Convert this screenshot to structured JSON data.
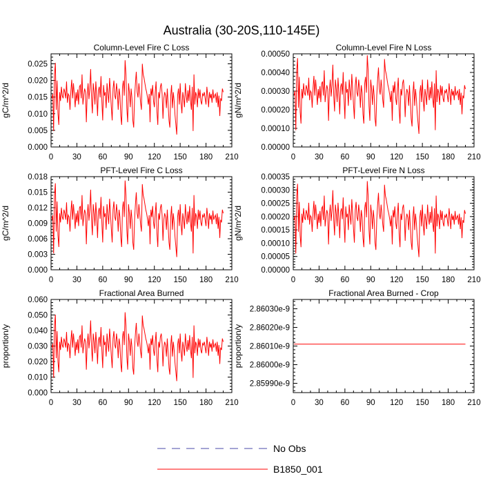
{
  "figure_title": "Australia (30-20S,110-145E)",
  "legend": [
    {
      "label": "No Obs",
      "color": "#4a4aa8",
      "style": "dashed"
    },
    {
      "label": "B1850_001",
      "color": "#ff0000",
      "style": "solid"
    }
  ],
  "chart_data": [
    {
      "id": "col_c",
      "type": "line",
      "title": "Column-Level Fire C Loss",
      "ylabel": "gC/m^2/d",
      "xlim": [
        0,
        210
      ],
      "ylim": [
        0,
        0.028
      ],
      "xticks": [
        0,
        30,
        60,
        90,
        120,
        150,
        180,
        210
      ],
      "yticks": [
        0,
        0.005,
        0.01,
        0.015,
        0.02,
        0.025
      ],
      "ytick_labels": [
        "0.000",
        "0.005",
        "0.010",
        "0.015",
        "0.020",
        "0.025"
      ],
      "series": [
        {
          "name": "B1850_001",
          "color": "#ff0000",
          "scale": 0.0266
        }
      ]
    },
    {
      "id": "col_n",
      "type": "line",
      "title": "Column-Level Fire N Loss",
      "ylabel": "gN/m^2/d",
      "xlim": [
        0,
        210
      ],
      "ylim": [
        0,
        0.0005
      ],
      "xticks": [
        0,
        30,
        60,
        90,
        120,
        150,
        180,
        210
      ],
      "yticks": [
        0,
        0.0001,
        0.0002,
        0.0003,
        0.0004,
        0.0005
      ],
      "ytick_labels": [
        "0.00000",
        "0.00010",
        "0.00020",
        "0.00030",
        "0.00040",
        "0.00050"
      ],
      "series": [
        {
          "name": "B1850_001",
          "color": "#ff0000",
          "scale": 0.000502
        }
      ]
    },
    {
      "id": "pft_c",
      "type": "line",
      "title": "PFT-Level Fire C Loss",
      "ylabel": "gC/m^2/d",
      "xlim": [
        0,
        210
      ],
      "ylim": [
        0,
        0.018
      ],
      "xticks": [
        0,
        30,
        60,
        90,
        120,
        150,
        180,
        210
      ],
      "yticks": [
        0,
        0.003,
        0.006,
        0.009,
        0.012,
        0.015,
        0.018
      ],
      "ytick_labels": [
        "0.000",
        "0.003",
        "0.006",
        "0.009",
        "0.012",
        "0.015",
        "0.018"
      ],
      "series": [
        {
          "name": "B1850_001",
          "color": "#ff0000",
          "scale": 0.0176
        }
      ]
    },
    {
      "id": "pft_n",
      "type": "line",
      "title": "PFT-Level Fire N Loss",
      "ylabel": "gN/m^2/d",
      "xlim": [
        0,
        210
      ],
      "ylim": [
        0,
        0.00035
      ],
      "xticks": [
        0,
        30,
        60,
        90,
        120,
        150,
        180,
        210
      ],
      "yticks": [
        0,
        5e-05,
        0.0001,
        0.00015,
        0.0002,
        0.00025,
        0.0003,
        0.00035
      ],
      "ytick_labels": [
        "0.00000",
        "0.00005",
        "0.00010",
        "0.00015",
        "0.00020",
        "0.00025",
        "0.00030",
        "0.00035"
      ],
      "series": [
        {
          "name": "B1850_001",
          "color": "#ff0000",
          "scale": 0.00034
        }
      ]
    },
    {
      "id": "area",
      "type": "line",
      "title": "Fractional Area Burned",
      "ylabel": "proportion/y",
      "xlim": [
        0,
        210
      ],
      "ylim": [
        0,
        0.06
      ],
      "xticks": [
        0,
        30,
        60,
        90,
        120,
        150,
        180,
        210
      ],
      "yticks": [
        0,
        0.01,
        0.02,
        0.03,
        0.04,
        0.05,
        0.06
      ],
      "ytick_labels": [
        "0.000",
        "0.010",
        "0.020",
        "0.030",
        "0.040",
        "0.050",
        "0.060"
      ],
      "series": [
        {
          "name": "B1850_001",
          "color": "#ff0000",
          "scale": 0.0528
        }
      ]
    },
    {
      "id": "crop",
      "type": "line",
      "title": "Fractional Area Burned - Crop",
      "ylabel": "proportion/y",
      "xlim": [
        0,
        210
      ],
      "ylim": [
        2.85985e-09,
        2.86035e-09
      ],
      "xticks": [
        0,
        30,
        60,
        90,
        120,
        150,
        180,
        210
      ],
      "yticks": [
        2.8599e-09,
        2.86e-09,
        2.8601e-09,
        2.8602e-09,
        2.8603e-09
      ],
      "ytick_labels": [
        "2.85990e-9",
        "2.86000e-9",
        "2.86010e-9",
        "2.86020e-9",
        "2.86030e-9"
      ],
      "series": [
        {
          "name": "B1850_001",
          "color": "#ff0000",
          "constant": 2.86011e-09
        }
      ]
    }
  ],
  "shared_series_shape": [
    0.55,
    0.6,
    0.18,
    0.82,
    0.95,
    0.42,
    0.75,
    0.38,
    0.25,
    0.62,
    0.52,
    0.68,
    0.58,
    0.55,
    0.66,
    0.62,
    0.55,
    0.74,
    0.5,
    0.6,
    0.58,
    0.42,
    0.63,
    0.76,
    0.55,
    0.72,
    0.6,
    0.45,
    0.62,
    0.52,
    0.65,
    0.48,
    0.68,
    0.7,
    0.55,
    0.82,
    0.48,
    0.58,
    0.66,
    0.62,
    0.28,
    0.6,
    0.72,
    0.54,
    0.66,
    0.88,
    0.55,
    0.38,
    0.72,
    0.62,
    0.48,
    0.74,
    0.58,
    0.35,
    0.64,
    0.68,
    0.56,
    0.8,
    0.52,
    0.3,
    0.7,
    0.58,
    0.62,
    0.44,
    0.72,
    0.6,
    0.5,
    0.78,
    0.62,
    0.45,
    0.3,
    0.66,
    0.75,
    0.58,
    0.54,
    0.72,
    0.62,
    0.42,
    0.66,
    0.58,
    0.35,
    0.25,
    0.68,
    0.75,
    0.58,
    0.98,
    0.82,
    0.44,
    0.28,
    0.72,
    0.62,
    0.45,
    0.66,
    0.55,
    0.3,
    0.22,
    0.55,
    0.72,
    0.85,
    0.62,
    0.56,
    0.72,
    0.62,
    0.5,
    0.42,
    0.94,
    0.82,
    0.78,
    0.72,
    0.66,
    0.62,
    0.56,
    0.48,
    0.6,
    0.28,
    0.66,
    0.58,
    0.7,
    0.52,
    0.45,
    0.62,
    0.74,
    0.4,
    0.25,
    0.62,
    0.55,
    0.68,
    0.72,
    0.6,
    0.32,
    0.55,
    0.62,
    0.58,
    0.44,
    0.66,
    0.48,
    0.3,
    0.22,
    0.58,
    0.7,
    0.44,
    0.62,
    0.52,
    0.36,
    0.25,
    0.14,
    0.58,
    0.66,
    0.48,
    0.72,
    0.5,
    0.38,
    0.62,
    0.55,
    0.45,
    0.72,
    0.58,
    0.5,
    0.64,
    0.52,
    0.7,
    0.52,
    0.42,
    0.68,
    0.18,
    0.82,
    0.48,
    0.62,
    0.58,
    0.45,
    0.66,
    0.55,
    0.65,
    0.52,
    0.48,
    0.6,
    0.58,
    0.62,
    0.55,
    0.48,
    0.68,
    0.58,
    0.45,
    0.62,
    0.55,
    0.6,
    0.5,
    0.65,
    0.55,
    0.58,
    0.6,
    0.5,
    0.62,
    0.45,
    0.58,
    0.35,
    0.55,
    0.52,
    0.66,
    0.62
  ]
}
